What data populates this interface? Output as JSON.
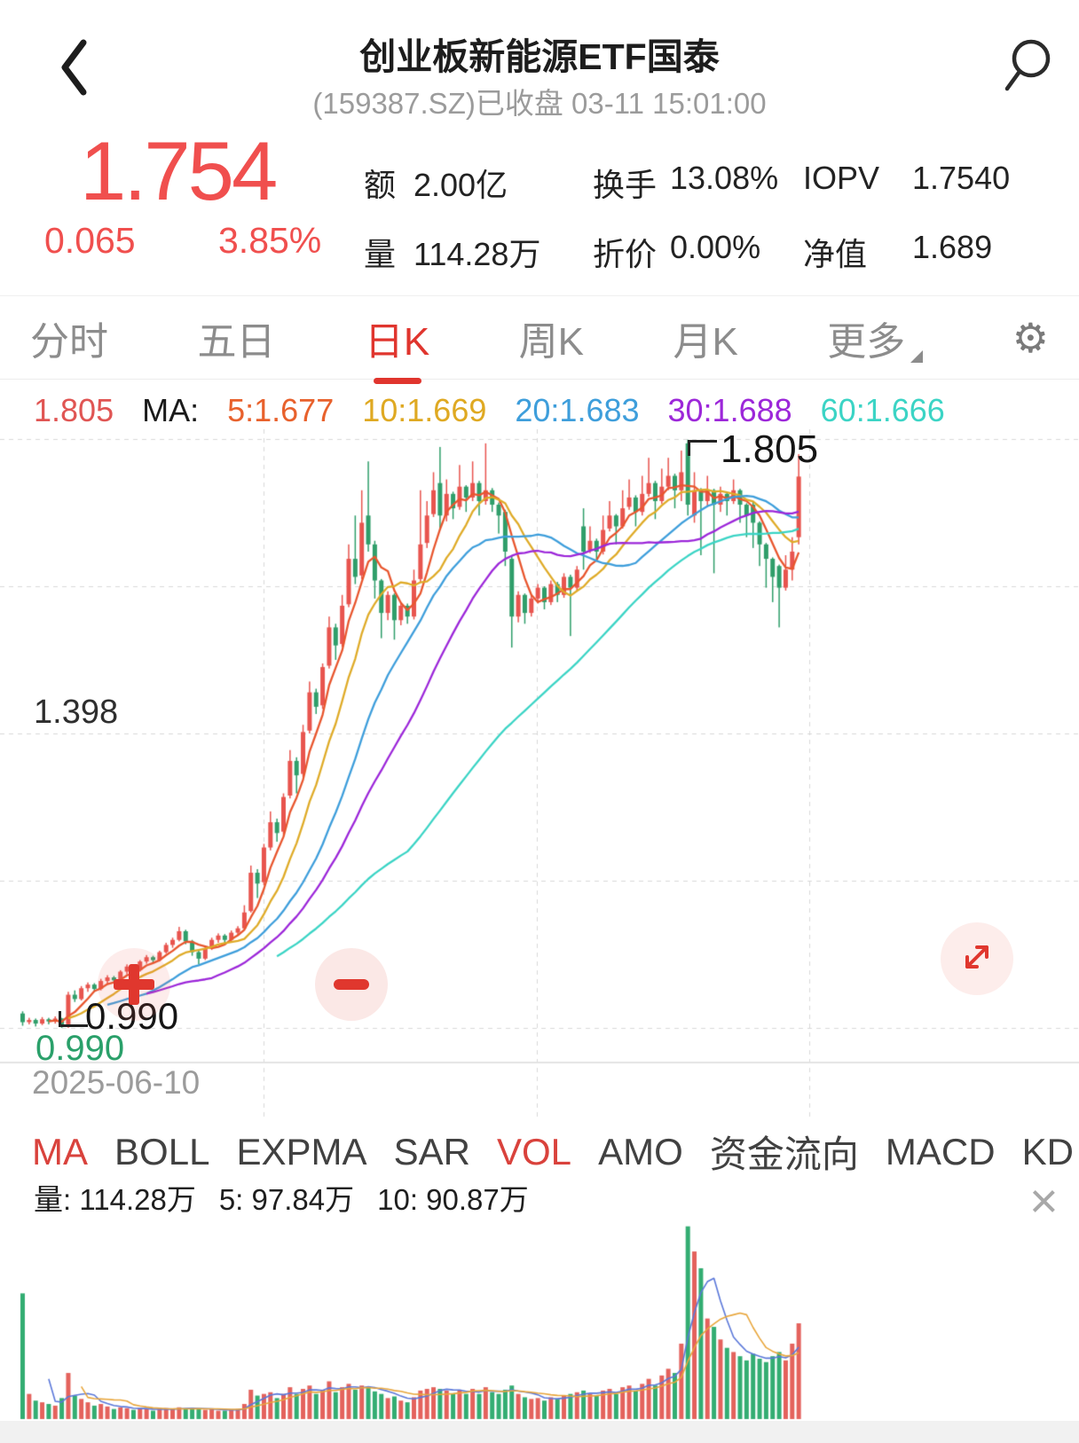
{
  "header": {
    "title": "创业板新能源ETF国泰",
    "subtitle": "(159387.SZ)已收盘 03-11 15:01:00"
  },
  "quote": {
    "price": "1.754",
    "change": "0.065",
    "change_pct": "3.85%",
    "stats": [
      {
        "label": "额",
        "value": "2.00亿"
      },
      {
        "label": "换手",
        "value": "13.08%"
      },
      {
        "label": "IOPV",
        "value": "1.7540"
      },
      {
        "label": "量",
        "value": "114.28万"
      },
      {
        "label": "折价",
        "value": "0.00%"
      },
      {
        "label": "净值",
        "value": "1.689"
      }
    ]
  },
  "tabs": {
    "items": [
      {
        "label": "分时",
        "active": false
      },
      {
        "label": "五日",
        "active": false
      },
      {
        "label": "日K",
        "active": true
      },
      {
        "label": "周K",
        "active": false
      },
      {
        "label": "月K",
        "active": false
      },
      {
        "label": "更多",
        "active": false
      }
    ]
  },
  "icons": {
    "gear": "⚙",
    "close": "×"
  },
  "ma_legend": {
    "max_label": "1.805",
    "prefix": "MA:",
    "items": [
      {
        "label": "5:1.677",
        "color": "#e8612c"
      },
      {
        "label": "10:1.669",
        "color": "#dfa922"
      },
      {
        "label": "20:1.683",
        "color": "#3e9edb"
      },
      {
        "label": "30:1.688",
        "color": "#9c27d9"
      },
      {
        "label": "60:1.666",
        "color": "#3bd4c5"
      }
    ]
  },
  "chart_annotations": {
    "mid_price": "1.398",
    "min_price": "0.990",
    "low_label": "0.990",
    "high_label": "1.805",
    "start_date": "2025-06-10"
  },
  "indicators": {
    "items": [
      {
        "label": "MA",
        "active": true
      },
      {
        "label": "BOLL",
        "active": false
      },
      {
        "label": "EXPMA",
        "active": false
      },
      {
        "label": "SAR",
        "active": false
      },
      {
        "label": "VOL",
        "active": true
      },
      {
        "label": "AMO",
        "active": false
      },
      {
        "label": "资金流向",
        "active": false
      },
      {
        "label": "MACD",
        "active": false
      },
      {
        "label": "KD",
        "active": false
      }
    ]
  },
  "volume_legend": {
    "vol": "量: 114.28万",
    "ma5": "5: 97.84万",
    "ma10": "10: 90.87万"
  },
  "colors": {
    "up": "#e8544e",
    "down": "#2f9e6a",
    "vol_up": "#e4625c",
    "vol_down": "#33ad72",
    "price_red": "#f04f4e",
    "accent_red": "#e0352e",
    "max_label_red": "#e05553",
    "min_label_green": "#2aa06a",
    "grid": "#d8d8d8",
    "axis": "#e3e3e3",
    "text_gray": "#9b9b9b"
  },
  "chart_data": {
    "type": "candlestick+volume",
    "title": "日K 创业板新能源ETF国泰 (159387.SZ)",
    "x_start_label": "2025-06-10",
    "price_axis": {
      "max": 1.806,
      "mid": 1.398,
      "min": 0.99
    },
    "price_gridlines": [
      1.806,
      1.602,
      1.398,
      1.194,
      0.99
    ],
    "vertical_gridlines_x": [
      297,
      605,
      912
    ],
    "high_annotation": {
      "index": 102,
      "price": 1.805
    },
    "low_annotation": {
      "index": 6,
      "price": 0.99
    },
    "ma_lines": [
      {
        "window": 5,
        "start": 4,
        "color": "#e8562e",
        "last": 1.677
      },
      {
        "window": 10,
        "start": 7,
        "color": "#dfab28",
        "last": 1.669
      },
      {
        "window": 20,
        "start": 13,
        "color": "#3e9edb",
        "last": 1.683
      },
      {
        "window": 30,
        "start": 19,
        "color": "#9c27d9",
        "last": 1.688
      },
      {
        "window": 60,
        "start": 39,
        "color": "#3bd4c5",
        "last": 1.666
      }
    ],
    "vol_ma_lines": [
      {
        "window": 5,
        "start": 4,
        "color": "#5b78d9",
        "last": 97.84
      },
      {
        "window": 10,
        "start": 9,
        "color": "#e8a63c",
        "last": 90.87
      }
    ],
    "candles": [
      [
        1.01,
        1.013,
        0.993,
        0.998
      ],
      [
        0.998,
        1.004,
        0.995,
        1.001
      ],
      [
        1.001,
        1.003,
        0.992,
        0.996
      ],
      [
        0.996,
        1.005,
        0.994,
        1.002
      ],
      [
        1.002,
        1.004,
        0.995,
        0.999
      ],
      [
        0.999,
        1.006,
        0.996,
        1.003
      ],
      [
        1.003,
        1.004,
        0.99,
        0.992
      ],
      [
        0.994,
        1.04,
        0.99,
        1.036
      ],
      [
        1.036,
        1.042,
        1.026,
        1.03
      ],
      [
        1.03,
        1.048,
        1.028,
        1.045
      ],
      [
        1.045,
        1.053,
        1.04,
        1.05
      ],
      [
        1.05,
        1.052,
        1.04,
        1.044
      ],
      [
        1.044,
        1.058,
        1.042,
        1.055
      ],
      [
        1.055,
        1.063,
        1.05,
        1.06
      ],
      [
        1.06,
        1.062,
        1.052,
        1.056
      ],
      [
        1.056,
        1.07,
        1.054,
        1.068
      ],
      [
        1.068,
        1.078,
        1.064,
        1.075
      ],
      [
        1.075,
        1.077,
        1.066,
        1.07
      ],
      [
        1.07,
        1.084,
        1.068,
        1.082
      ],
      [
        1.082,
        1.091,
        1.079,
        1.088
      ],
      [
        1.088,
        1.09,
        1.08,
        1.084
      ],
      [
        1.084,
        1.097,
        1.082,
        1.095
      ],
      [
        1.095,
        1.108,
        1.093,
        1.105
      ],
      [
        1.105,
        1.115,
        1.101,
        1.112
      ],
      [
        1.112,
        1.13,
        1.11,
        1.124
      ],
      [
        1.124,
        1.126,
        1.106,
        1.11
      ],
      [
        1.11,
        1.112,
        1.09,
        1.095
      ],
      [
        1.095,
        1.098,
        1.078,
        1.086
      ],
      [
        1.086,
        1.103,
        1.084,
        1.1
      ],
      [
        1.1,
        1.115,
        1.098,
        1.112
      ],
      [
        1.112,
        1.121,
        1.108,
        1.118
      ],
      [
        1.118,
        1.12,
        1.106,
        1.112
      ],
      [
        1.112,
        1.125,
        1.11,
        1.122
      ],
      [
        1.122,
        1.131,
        1.118,
        1.128
      ],
      [
        1.128,
        1.16,
        1.126,
        1.15
      ],
      [
        1.152,
        1.215,
        1.15,
        1.205
      ],
      [
        1.205,
        1.21,
        1.17,
        1.19
      ],
      [
        1.192,
        1.245,
        1.188,
        1.24
      ],
      [
        1.24,
        1.29,
        1.236,
        1.275
      ],
      [
        1.275,
        1.28,
        1.248,
        1.26
      ],
      [
        1.262,
        1.315,
        1.258,
        1.31
      ],
      [
        1.312,
        1.375,
        1.308,
        1.36
      ],
      [
        1.36,
        1.365,
        1.315,
        1.34
      ],
      [
        1.342,
        1.41,
        1.338,
        1.4
      ],
      [
        1.402,
        1.47,
        1.398,
        1.455
      ],
      [
        1.455,
        1.46,
        1.425,
        1.435
      ],
      [
        1.437,
        1.495,
        1.432,
        1.49
      ],
      [
        1.492,
        1.56,
        1.488,
        1.545
      ],
      [
        1.545,
        1.55,
        1.5,
        1.52
      ],
      [
        1.522,
        1.59,
        1.518,
        1.575
      ],
      [
        1.577,
        1.66,
        1.573,
        1.64
      ],
      [
        1.64,
        1.7,
        1.605,
        1.615
      ],
      [
        1.617,
        1.735,
        1.612,
        1.69
      ],
      [
        1.7,
        1.775,
        1.65,
        1.66
      ],
      [
        1.66,
        1.665,
        1.585,
        1.61
      ],
      [
        1.61,
        1.612,
        1.53,
        1.565
      ],
      [
        1.565,
        1.595,
        1.555,
        1.59
      ],
      [
        1.59,
        1.592,
        1.528,
        1.555
      ],
      [
        1.555,
        1.58,
        1.548,
        1.575
      ],
      [
        1.575,
        1.578,
        1.55,
        1.56
      ],
      [
        1.56,
        1.625,
        1.556,
        1.61
      ],
      [
        1.612,
        1.735,
        1.608,
        1.66
      ],
      [
        1.662,
        1.72,
        1.655,
        1.7
      ],
      [
        1.702,
        1.76,
        1.698,
        1.735
      ],
      [
        1.745,
        1.795,
        1.68,
        1.7
      ],
      [
        1.7,
        1.75,
        1.692,
        1.73
      ],
      [
        1.73,
        1.733,
        1.695,
        1.71
      ],
      [
        1.712,
        1.77,
        1.708,
        1.74
      ],
      [
        1.74,
        1.742,
        1.705,
        1.725
      ],
      [
        1.725,
        1.775,
        1.72,
        1.745
      ],
      [
        1.745,
        1.748,
        1.7,
        1.72
      ],
      [
        1.72,
        1.8,
        1.715,
        1.735
      ],
      [
        1.735,
        1.738,
        1.705,
        1.715
      ],
      [
        1.715,
        1.718,
        1.675,
        1.7
      ],
      [
        1.705,
        1.708,
        1.63,
        1.65
      ],
      [
        1.64,
        1.645,
        1.517,
        1.56
      ],
      [
        1.56,
        1.595,
        1.552,
        1.59
      ],
      [
        1.59,
        1.592,
        1.55,
        1.565
      ],
      [
        1.565,
        1.59,
        1.56,
        1.585
      ],
      [
        1.585,
        1.605,
        1.578,
        1.6
      ],
      [
        1.6,
        1.602,
        1.57,
        1.58
      ],
      [
        1.58,
        1.61,
        1.576,
        1.605
      ],
      [
        1.605,
        1.608,
        1.58,
        1.59
      ],
      [
        1.59,
        1.62,
        1.586,
        1.615
      ],
      [
        1.615,
        1.618,
        1.533,
        1.6
      ],
      [
        1.6,
        1.63,
        1.595,
        1.625
      ],
      [
        1.685,
        1.71,
        1.625,
        1.65
      ],
      [
        1.652,
        1.685,
        1.648,
        1.665
      ],
      [
        1.665,
        1.668,
        1.638,
        1.65
      ],
      [
        1.65,
        1.7,
        1.646,
        1.68
      ],
      [
        1.682,
        1.72,
        1.678,
        1.7
      ],
      [
        1.7,
        1.702,
        1.66,
        1.685
      ],
      [
        1.685,
        1.735,
        1.682,
        1.71
      ],
      [
        1.712,
        1.75,
        1.708,
        1.725
      ],
      [
        1.725,
        1.728,
        1.685,
        1.705
      ],
      [
        1.705,
        1.755,
        1.7,
        1.73
      ],
      [
        1.73,
        1.78,
        1.726,
        1.745
      ],
      [
        1.745,
        1.748,
        1.695,
        1.72
      ],
      [
        1.72,
        1.765,
        1.716,
        1.74
      ],
      [
        1.74,
        1.78,
        1.735,
        1.755
      ],
      [
        1.755,
        1.758,
        1.71,
        1.735
      ],
      [
        1.735,
        1.79,
        1.72,
        1.76
      ],
      [
        1.8,
        1.805,
        1.7,
        1.715
      ],
      [
        1.7,
        1.76,
        1.69,
        1.735
      ],
      [
        1.735,
        1.738,
        1.645,
        1.72
      ],
      [
        1.72,
        1.755,
        1.712,
        1.735
      ],
      [
        1.735,
        1.737,
        1.62,
        1.715
      ],
      [
        1.715,
        1.74,
        1.705,
        1.73
      ],
      [
        1.73,
        1.732,
        1.7,
        1.72
      ],
      [
        1.72,
        1.75,
        1.716,
        1.735
      ],
      [
        1.735,
        1.737,
        1.69,
        1.715
      ],
      [
        1.715,
        1.717,
        1.67,
        1.7
      ],
      [
        1.715,
        1.72,
        1.655,
        1.69
      ],
      [
        1.69,
        1.692,
        1.63,
        1.66
      ],
      [
        1.66,
        1.662,
        1.6,
        1.64
      ],
      [
        1.64,
        1.642,
        1.58,
        1.615
      ],
      [
        1.63,
        1.632,
        1.545,
        1.6
      ],
      [
        1.6,
        1.645,
        1.596,
        1.625
      ],
      [
        1.625,
        1.67,
        1.61,
        1.65
      ],
      [
        1.67,
        1.785,
        1.66,
        1.754
      ]
    ],
    "volumes": [
      150,
      30,
      22,
      20,
      18,
      16,
      25,
      55,
      28,
      24,
      20,
      16,
      18,
      15,
      12,
      14,
      13,
      11,
      13,
      12,
      10,
      12,
      13,
      12,
      14,
      12,
      13,
      12,
      11,
      12,
      10,
      10,
      11,
      12,
      18,
      35,
      28,
      30,
      32,
      25,
      30,
      38,
      30,
      36,
      40,
      30,
      35,
      45,
      32,
      38,
      42,
      35,
      40,
      38,
      33,
      30,
      25,
      27,
      22,
      20,
      26,
      34,
      36,
      38,
      36,
      34,
      30,
      35,
      30,
      36,
      30,
      38,
      32,
      30,
      35,
      40,
      30,
      26,
      24,
      25,
      22,
      26,
      24,
      28,
      30,
      32,
      34,
      30,
      28,
      34,
      36,
      30,
      38,
      40,
      34,
      42,
      48,
      40,
      52,
      60,
      55,
      90,
      230,
      200,
      180,
      120,
      110,
      95,
      85,
      80,
      75,
      70,
      78,
      72,
      68,
      75,
      80,
      70,
      90,
      114.28
    ]
  }
}
